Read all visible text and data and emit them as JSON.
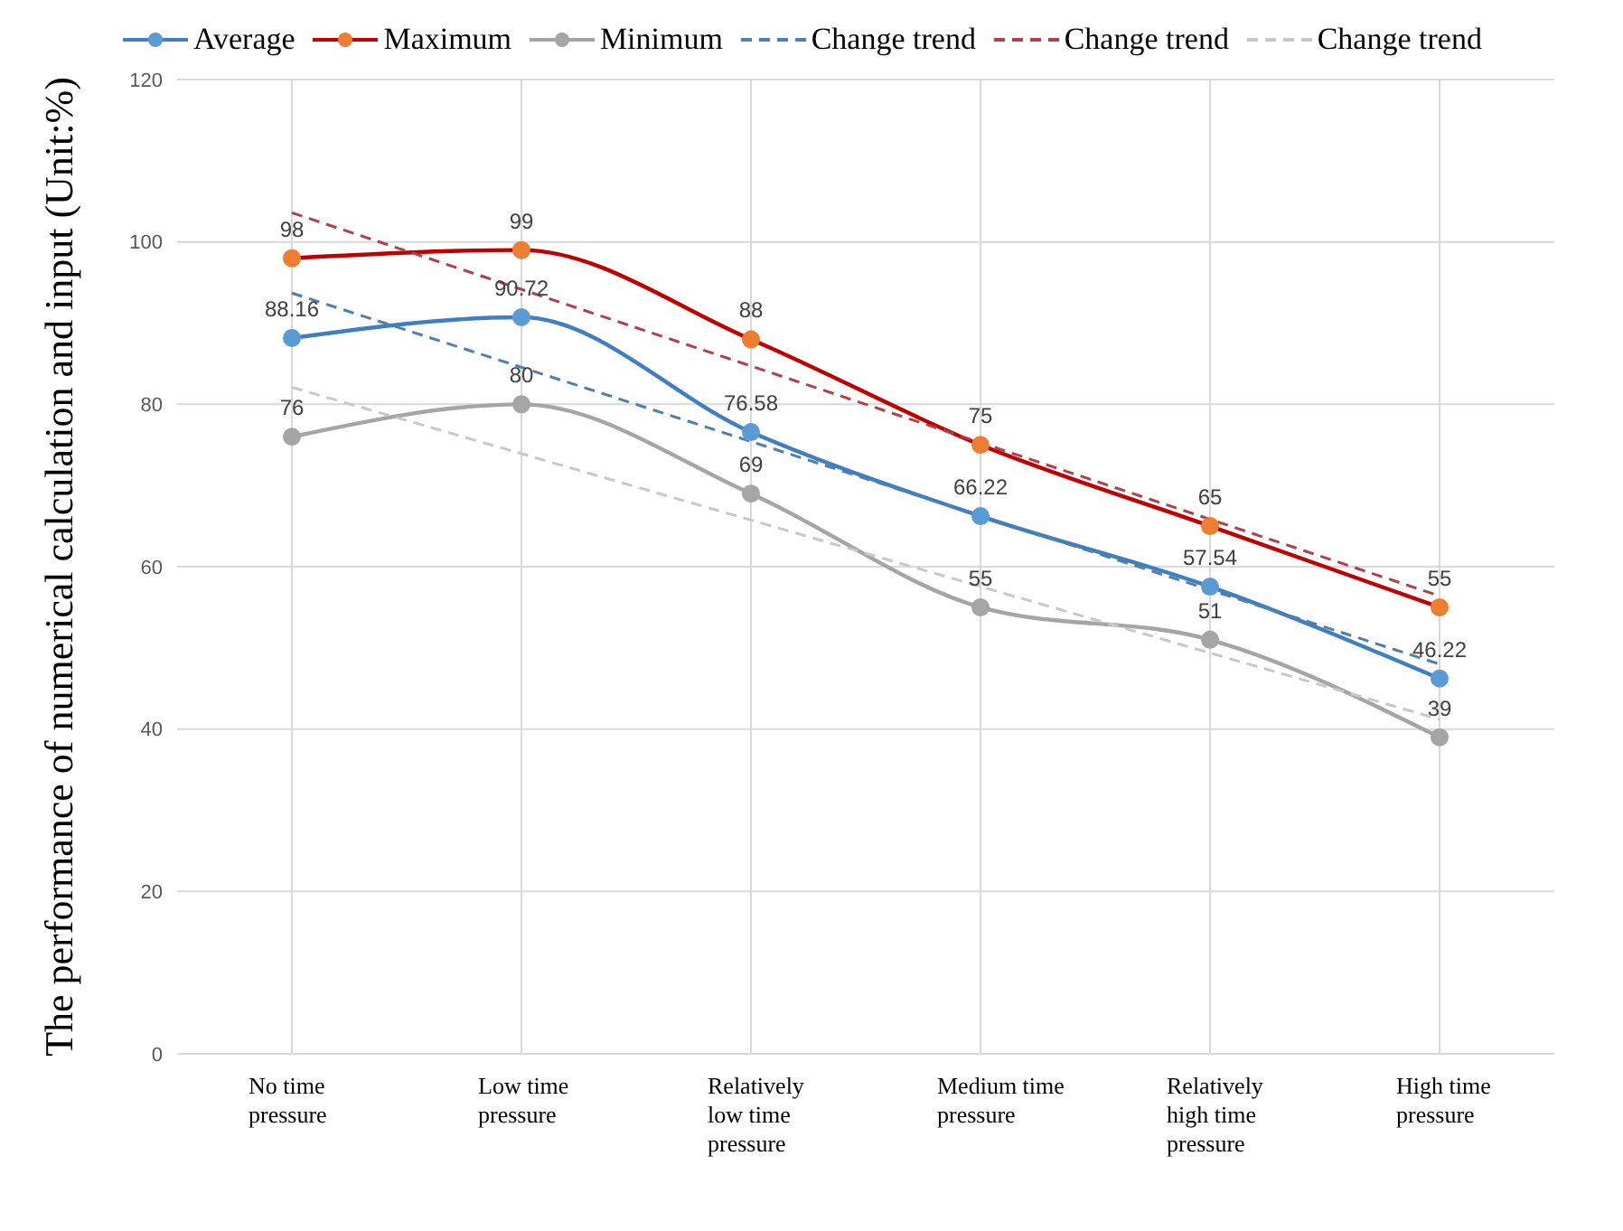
{
  "chart_data": {
    "type": "line",
    "ylabel": "The performance of numerical calculation and input (Unit:%)",
    "categories": [
      "No time pressure",
      "Low time pressure",
      "Relatively low time pressure",
      "Medium time pressure",
      "Relatively high time pressure",
      "High time pressure"
    ],
    "series": [
      {
        "name": "Average",
        "color": "#3f7fbf",
        "colors": [
          "#5b9bd5",
          "#5b9bd5",
          "#5b9bd5",
          "#5b9bd5",
          "#5b9bd5",
          "#5b9bd5"
        ],
        "values": [
          88.16,
          90.72,
          76.58,
          66.22,
          57.54,
          46.22
        ],
        "value_labels": [
          "88.16",
          "90.72",
          "76.58",
          "66.22",
          "57.54",
          "46.22"
        ],
        "marker": "circle",
        "line_style": "solid"
      },
      {
        "name": "Maximum",
        "color": "#c00000",
        "colors": [
          "#ed7d31",
          "#ed7d31",
          "#ed7d31",
          "#ed7d31",
          "#ed7d31",
          "#ed7d31"
        ],
        "values": [
          98,
          99,
          88,
          75,
          65,
          55
        ],
        "value_labels": [
          "98",
          "99",
          "88",
          "75",
          "65",
          "55"
        ],
        "marker": "circle",
        "line_style": "solid"
      },
      {
        "name": "Minimum",
        "color": "#a5a5a5",
        "colors": [
          "#a5a5a5",
          "#a5a5a5",
          "#a5a5a5",
          "#a5a5a5",
          "#a5a5a5",
          "#a5a5a5"
        ],
        "values": [
          76,
          80,
          69,
          55,
          51,
          39
        ],
        "value_labels": [
          "76",
          "80",
          "69",
          "55",
          "51",
          "39"
        ],
        "marker": "circle",
        "line_style": "solid"
      },
      {
        "name": "Change trend",
        "color": "#4f7fae",
        "x": [
          "No time pressure",
          "High time pressure"
        ],
        "values": [
          93.7,
          48.0
        ],
        "marker": "none",
        "line_style": "dashed"
      },
      {
        "name": "Change trend",
        "color": "#b0404a",
        "x": [
          "No time pressure",
          "High time pressure"
        ],
        "values": [
          103.6,
          56.4
        ],
        "marker": "none",
        "line_style": "dashed"
      },
      {
        "name": "Change trend",
        "color": "#c8c8c8",
        "x": [
          "No time pressure",
          "High time pressure"
        ],
        "values": [
          82.1,
          41.2
        ],
        "marker": "none",
        "line_style": "dashed"
      }
    ],
    "ylim": [
      0,
      120
    ],
    "yticks": [
      0,
      20,
      40,
      60,
      80,
      100,
      120
    ],
    "grid": true,
    "legend": "top"
  }
}
